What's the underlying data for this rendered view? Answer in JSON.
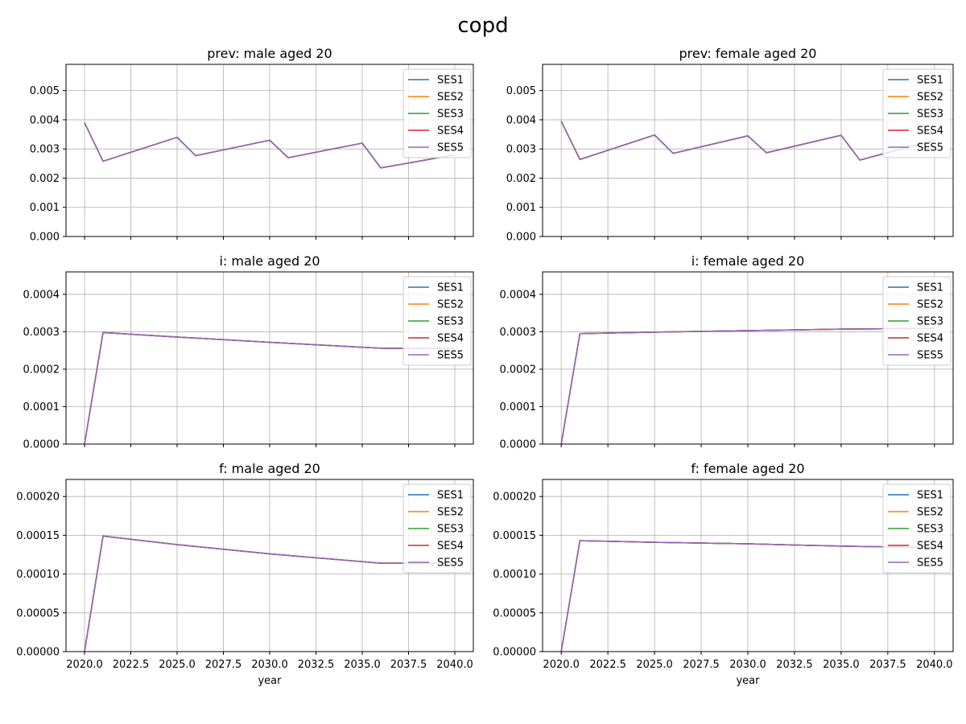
{
  "figure": {
    "suptitle": "copd",
    "xlabel": "year"
  },
  "legend": {
    "placement": "upper right",
    "entries": [
      "SES1",
      "SES2",
      "SES3",
      "SES4",
      "SES5"
    ]
  },
  "series_colors": [
    "#1f77b4",
    "#ff7f0e",
    "#2ca02c",
    "#d62728",
    "#9467bd"
  ],
  "chart_data": [
    {
      "type": "line",
      "title": "prev: male aged 20",
      "xlabel": "",
      "ylabel": "",
      "xlim": [
        2019.0,
        2041.0
      ],
      "ylim": [
        0,
        0.0059
      ],
      "grid": true,
      "legend": "upper right",
      "xticks": [
        2020.0,
        2022.5,
        2025.0,
        2027.5,
        2030.0,
        2032.5,
        2035.0,
        2037.5,
        2040.0
      ],
      "xtick_labels": [],
      "yticks": [
        0,
        0.001,
        0.002,
        0.003,
        0.004,
        0.005
      ],
      "ytick_labels": [
        "0.000",
        "0.001",
        "0.002",
        "0.003",
        "0.004",
        "0.005"
      ],
      "x": [
        2020,
        2021,
        2025,
        2026,
        2030,
        2031,
        2035,
        2036,
        2040
      ],
      "series": [
        {
          "name": "SES1",
          "values": [
            0.0039,
            0.00258,
            0.0034,
            0.00277,
            0.0033,
            0.0027,
            0.0032,
            0.00235,
            0.0028
          ]
        },
        {
          "name": "SES2",
          "values": [
            0.0039,
            0.00258,
            0.0034,
            0.00277,
            0.0033,
            0.0027,
            0.0032,
            0.00235,
            0.0028
          ]
        },
        {
          "name": "SES3",
          "values": [
            0.0039,
            0.00258,
            0.0034,
            0.00277,
            0.0033,
            0.0027,
            0.0032,
            0.00235,
            0.0028
          ]
        },
        {
          "name": "SES4",
          "values": [
            0.0039,
            0.00258,
            0.0034,
            0.00277,
            0.0033,
            0.0027,
            0.0032,
            0.00235,
            0.0028
          ]
        },
        {
          "name": "SES5",
          "values": [
            0.0039,
            0.00258,
            0.0034,
            0.00277,
            0.0033,
            0.0027,
            0.0032,
            0.00235,
            0.0028
          ]
        }
      ]
    },
    {
      "type": "line",
      "title": "prev: female aged 20",
      "xlabel": "",
      "ylabel": "",
      "xlim": [
        2019.0,
        2041.0
      ],
      "ylim": [
        0,
        0.0059
      ],
      "grid": true,
      "legend": "upper right",
      "xticks": [
        2020.0,
        2022.5,
        2025.0,
        2027.5,
        2030.0,
        2032.5,
        2035.0,
        2037.5,
        2040.0
      ],
      "xtick_labels": [],
      "yticks": [
        0,
        0.001,
        0.002,
        0.003,
        0.004,
        0.005
      ],
      "ytick_labels": [
        "0.000",
        "0.001",
        "0.002",
        "0.003",
        "0.004",
        "0.005"
      ],
      "x": [
        2020,
        2021,
        2025,
        2026,
        2030,
        2031,
        2035,
        2036,
        2040
      ],
      "series": [
        {
          "name": "SES1",
          "values": [
            0.00395,
            0.00264,
            0.00348,
            0.00285,
            0.00345,
            0.00287,
            0.00347,
            0.00262,
            0.0033
          ]
        },
        {
          "name": "SES2",
          "values": [
            0.00395,
            0.00264,
            0.00348,
            0.00285,
            0.00345,
            0.00287,
            0.00347,
            0.00262,
            0.0033
          ]
        },
        {
          "name": "SES3",
          "values": [
            0.00395,
            0.00264,
            0.00348,
            0.00285,
            0.00345,
            0.00287,
            0.00347,
            0.00262,
            0.0033
          ]
        },
        {
          "name": "SES4",
          "values": [
            0.00395,
            0.00264,
            0.00348,
            0.00285,
            0.00345,
            0.00287,
            0.00347,
            0.00262,
            0.0033
          ]
        },
        {
          "name": "SES5",
          "values": [
            0.00395,
            0.00264,
            0.00348,
            0.00285,
            0.00345,
            0.00287,
            0.00347,
            0.00262,
            0.0033
          ]
        }
      ]
    },
    {
      "type": "line",
      "title": "i: male aged 20",
      "xlabel": "",
      "ylabel": "",
      "xlim": [
        2019.0,
        2041.0
      ],
      "ylim": [
        0,
        0.00046
      ],
      "grid": true,
      "legend": "upper right",
      "xticks": [
        2020.0,
        2022.5,
        2025.0,
        2027.5,
        2030.0,
        2032.5,
        2035.0,
        2037.5,
        2040.0
      ],
      "xtick_labels": [],
      "yticks": [
        0,
        0.0001,
        0.0002,
        0.0003,
        0.0004
      ],
      "ytick_labels": [
        "0.0000",
        "0.0001",
        "0.0002",
        "0.0003",
        "0.0004"
      ],
      "x": [
        2020,
        2021,
        2025,
        2030,
        2036,
        2040
      ],
      "series": [
        {
          "name": "SES1",
          "values": [
            0.0,
            0.000298,
            0.000286,
            0.000272,
            0.000256,
            0.000255
          ]
        },
        {
          "name": "SES2",
          "values": [
            0.0,
            0.000298,
            0.000286,
            0.000272,
            0.000256,
            0.000255
          ]
        },
        {
          "name": "SES3",
          "values": [
            0.0,
            0.000298,
            0.000286,
            0.000272,
            0.000256,
            0.000255
          ]
        },
        {
          "name": "SES4",
          "values": [
            0.0,
            0.000298,
            0.000286,
            0.000272,
            0.000256,
            0.000255
          ]
        },
        {
          "name": "SES5",
          "values": [
            0.0,
            0.000298,
            0.000286,
            0.000272,
            0.000256,
            0.000255
          ]
        }
      ]
    },
    {
      "type": "line",
      "title": "i: female aged 20",
      "xlabel": "",
      "ylabel": "",
      "xlim": [
        2019.0,
        2041.0
      ],
      "ylim": [
        0,
        0.00046
      ],
      "grid": true,
      "legend": "upper right",
      "xticks": [
        2020.0,
        2022.5,
        2025.0,
        2027.5,
        2030.0,
        2032.5,
        2035.0,
        2037.5,
        2040.0
      ],
      "xtick_labels": [],
      "yticks": [
        0,
        0.0001,
        0.0002,
        0.0003,
        0.0004
      ],
      "ytick_labels": [
        "0.0000",
        "0.0001",
        "0.0002",
        "0.0003",
        "0.0004"
      ],
      "x": [
        2020,
        2021,
        2025,
        2030,
        2035,
        2040
      ],
      "series": [
        {
          "name": "SES1",
          "values": [
            0.0,
            0.000295,
            0.000299,
            0.000303,
            0.000307,
            0.000309
          ]
        },
        {
          "name": "SES2",
          "values": [
            0.0,
            0.000295,
            0.000299,
            0.000303,
            0.000307,
            0.000309
          ]
        },
        {
          "name": "SES3",
          "values": [
            0.0,
            0.000295,
            0.000299,
            0.000303,
            0.000307,
            0.000309
          ]
        },
        {
          "name": "SES4",
          "values": [
            0.0,
            0.000295,
            0.000299,
            0.000303,
            0.000307,
            0.000309
          ]
        },
        {
          "name": "SES5",
          "values": [
            0.0,
            0.000295,
            0.000299,
            0.000303,
            0.000307,
            0.000309
          ]
        }
      ]
    },
    {
      "type": "line",
      "title": "f: male aged 20",
      "xlabel": "year",
      "ylabel": "",
      "xlim": [
        2019.0,
        2041.0
      ],
      "ylim": [
        0,
        0.000222
      ],
      "grid": true,
      "legend": "upper right",
      "xticks": [
        2020.0,
        2022.5,
        2025.0,
        2027.5,
        2030.0,
        2032.5,
        2035.0,
        2037.5,
        2040.0
      ],
      "xtick_labels": [
        "2020.0",
        "2022.5",
        "2025.0",
        "2027.5",
        "2030.0",
        "2032.5",
        "2035.0",
        "2037.5",
        "2040.0"
      ],
      "yticks": [
        0,
        5e-05,
        0.0001,
        0.00015,
        0.0002
      ],
      "ytick_labels": [
        "0.00000",
        "0.00005",
        "0.00010",
        "0.00015",
        "0.00020"
      ],
      "x": [
        2020,
        2021,
        2025,
        2030,
        2036,
        2040
      ],
      "series": [
        {
          "name": "SES1",
          "values": [
            0.0,
            0.000149,
            0.000138,
            0.000126,
            0.000114,
            0.000114
          ]
        },
        {
          "name": "SES2",
          "values": [
            0.0,
            0.000149,
            0.000138,
            0.000126,
            0.000114,
            0.000114
          ]
        },
        {
          "name": "SES3",
          "values": [
            0.0,
            0.000149,
            0.000138,
            0.000126,
            0.000114,
            0.000114
          ]
        },
        {
          "name": "SES4",
          "values": [
            0.0,
            0.000149,
            0.000138,
            0.000126,
            0.000114,
            0.000114
          ]
        },
        {
          "name": "SES5",
          "values": [
            0.0,
            0.000149,
            0.000138,
            0.000126,
            0.000114,
            0.000114
          ]
        }
      ]
    },
    {
      "type": "line",
      "title": "f: female aged 20",
      "xlabel": "year",
      "ylabel": "",
      "xlim": [
        2019.0,
        2041.0
      ],
      "ylim": [
        0,
        0.000222
      ],
      "grid": true,
      "legend": "upper right",
      "xticks": [
        2020.0,
        2022.5,
        2025.0,
        2027.5,
        2030.0,
        2032.5,
        2035.0,
        2037.5,
        2040.0
      ],
      "xtick_labels": [
        "2020.0",
        "2022.5",
        "2025.0",
        "2027.5",
        "2030.0",
        "2032.5",
        "2035.0",
        "2037.5",
        "2040.0"
      ],
      "yticks": [
        0,
        5e-05,
        0.0001,
        0.00015,
        0.0002
      ],
      "ytick_labels": [
        "0.00000",
        "0.00005",
        "0.00010",
        "0.00015",
        "0.00020"
      ],
      "x": [
        2020,
        2021,
        2025,
        2030,
        2035,
        2040
      ],
      "series": [
        {
          "name": "SES1",
          "values": [
            0.0,
            0.000143,
            0.000141,
            0.000139,
            0.000136,
            0.000134
          ]
        },
        {
          "name": "SES2",
          "values": [
            0.0,
            0.000143,
            0.000141,
            0.000139,
            0.000136,
            0.000134
          ]
        },
        {
          "name": "SES3",
          "values": [
            0.0,
            0.000143,
            0.000141,
            0.000139,
            0.000136,
            0.000134
          ]
        },
        {
          "name": "SES4",
          "values": [
            0.0,
            0.000143,
            0.000141,
            0.000139,
            0.000136,
            0.000134
          ]
        },
        {
          "name": "SES5",
          "values": [
            0.0,
            0.000143,
            0.000141,
            0.000139,
            0.000136,
            0.000134
          ]
        }
      ]
    }
  ]
}
